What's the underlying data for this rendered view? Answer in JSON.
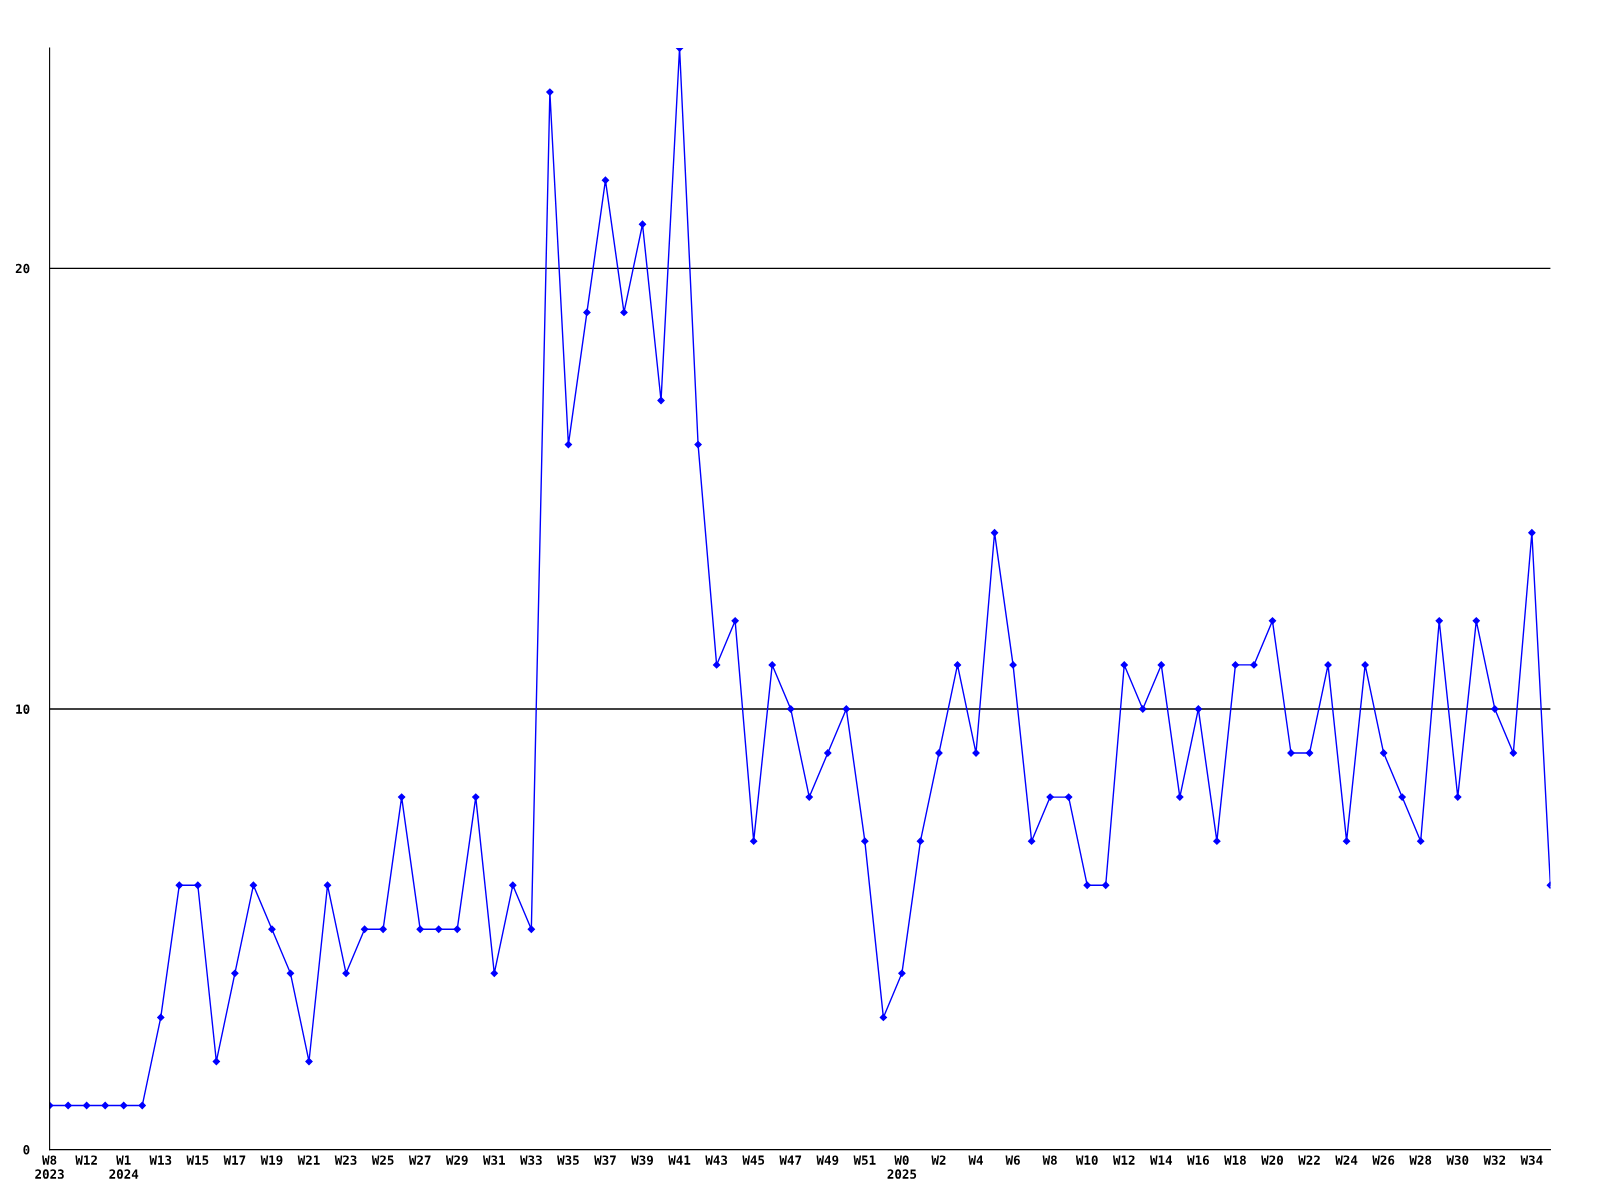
{
  "chart_data": {
    "type": "line",
    "categories": [
      "W8\n2023",
      null,
      "W12",
      null,
      "W1\n2024",
      null,
      "W13",
      null,
      "W15",
      null,
      "W17",
      null,
      "W19",
      null,
      "W21",
      null,
      "W23",
      null,
      "W25",
      null,
      "W27",
      null,
      "W29",
      null,
      "W31",
      null,
      "W33",
      null,
      "W35",
      null,
      "W37",
      null,
      "W39",
      null,
      "W41",
      null,
      "W43",
      null,
      "W45",
      null,
      "W47",
      null,
      "W49",
      null,
      "W51",
      null,
      "W0\n2025",
      null,
      "W2",
      null,
      "W4",
      null,
      "W6",
      null,
      "W8",
      null,
      "W10",
      null,
      "W12",
      null,
      "W14",
      null,
      "W16",
      null,
      "W18",
      null,
      "W20",
      null,
      "W22",
      null,
      "W24",
      null,
      "W26",
      null,
      "W28",
      null,
      "W30",
      null,
      "W32",
      null,
      "W34",
      null
    ],
    "series": [
      {
        "color": "#0000ff",
        "values": [
          1,
          1,
          1,
          1,
          1,
          1,
          3,
          6,
          6,
          2,
          4,
          6,
          5,
          4,
          2,
          6,
          4,
          5,
          5,
          8,
          5,
          5,
          5,
          8,
          4,
          6,
          5,
          24,
          16,
          19,
          22,
          19,
          21,
          17,
          25,
          16,
          11,
          12,
          7,
          11,
          10,
          8,
          9,
          10,
          7,
          3,
          4,
          7,
          9,
          11,
          9,
          14,
          11,
          7,
          8,
          8,
          6,
          6,
          11,
          10,
          11,
          8,
          10,
          7,
          11,
          11,
          12,
          9,
          9,
          11,
          7,
          11,
          9,
          8,
          7,
          12,
          8,
          12,
          10,
          9,
          14,
          6
        ]
      }
    ],
    "ylim": [
      0,
      25
    ],
    "yticks": [
      0,
      10,
      20
    ],
    "grid": "y",
    "marker": "diamond",
    "line_style": "solid",
    "legend": false
  }
}
